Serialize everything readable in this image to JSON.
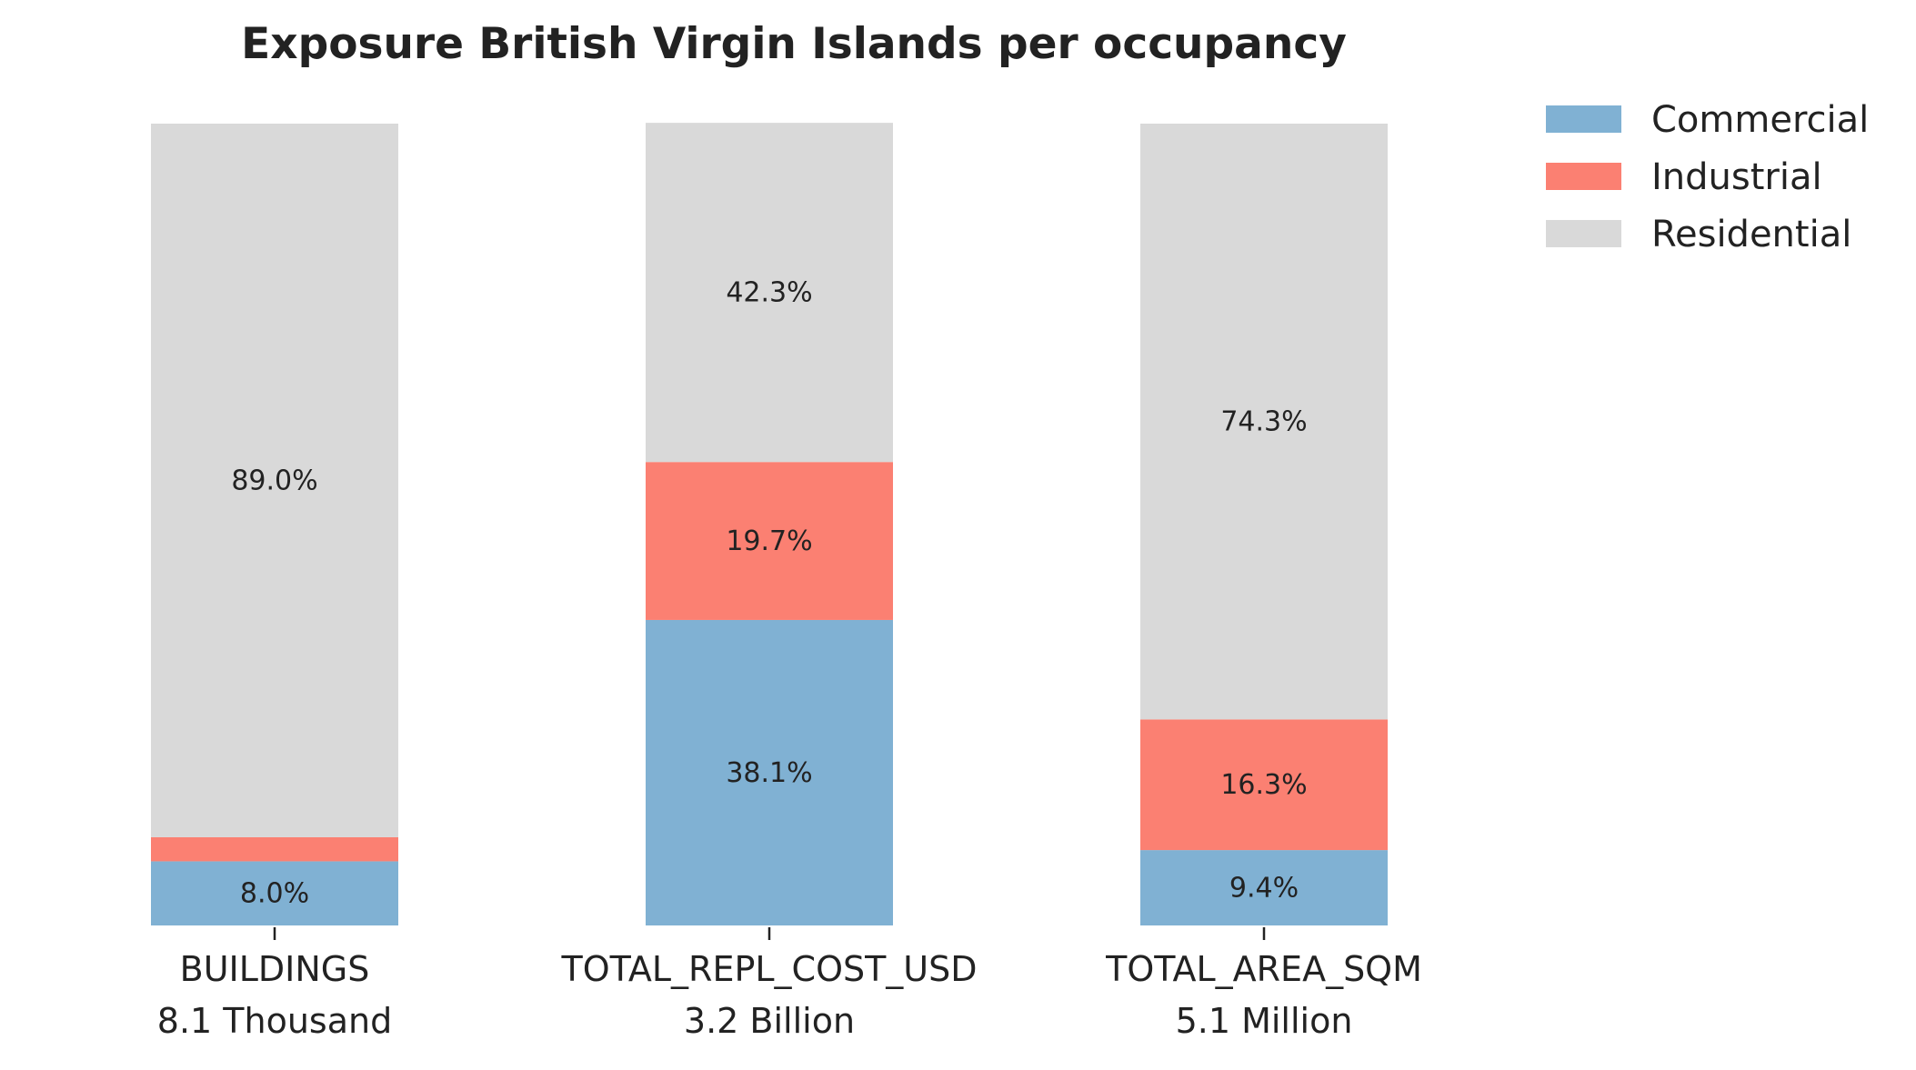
{
  "chart_data": {
    "type": "bar",
    "stacked": true,
    "title": "Exposure British Virgin Islands per occupancy",
    "categories": [
      {
        "name": "BUILDINGS",
        "total": "8.1 Thousand"
      },
      {
        "name": "TOTAL_REPL_COST_USD",
        "total": "3.2 Billion"
      },
      {
        "name": "TOTAL_AREA_SQM",
        "total": "5.1 Million"
      }
    ],
    "series": [
      {
        "name": "Commercial",
        "color": "#80b1d3",
        "values": [
          8.0,
          38.1,
          9.4
        ],
        "labels": [
          "8.0%",
          "38.1%",
          "9.4%"
        ]
      },
      {
        "name": "Industrial",
        "color": "#fb8072",
        "values": [
          3.0,
          19.7,
          16.3
        ],
        "labels": [
          "",
          "19.7%",
          "16.3%"
        ]
      },
      {
        "name": "Residential",
        "color": "#d9d9d9",
        "values": [
          89.0,
          42.3,
          74.3
        ],
        "labels": [
          "89.0%",
          "42.3%",
          "74.3%"
        ]
      }
    ],
    "ylim": [
      0,
      100
    ],
    "legend_position": "top-right",
    "grid": false
  }
}
